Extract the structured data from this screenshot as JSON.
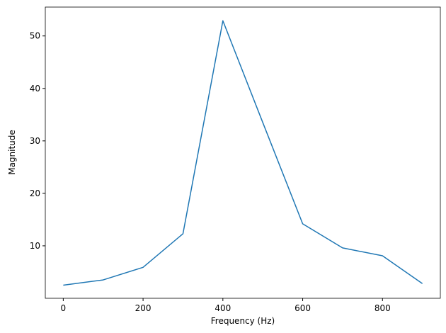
{
  "chart_data": {
    "type": "line",
    "xlabel": "Frequency (Hz)",
    "ylabel": "Magnitude",
    "x": [
      0,
      100,
      200,
      300,
      400,
      500,
      600,
      700,
      800,
      900
    ],
    "series": [
      {
        "color": "#1f77b4",
        "values": [
          2.5,
          3.5,
          5.9,
          12.3,
          52.9,
          33.5,
          14.2,
          9.6,
          8.1,
          2.8
        ]
      }
    ],
    "xlim": [
      -45,
      945
    ],
    "ylim": [
      0,
      55.5
    ],
    "xticks": [
      0,
      200,
      400,
      600,
      800
    ],
    "yticks": [
      10,
      20,
      30,
      40,
      50
    ],
    "grid": false
  }
}
